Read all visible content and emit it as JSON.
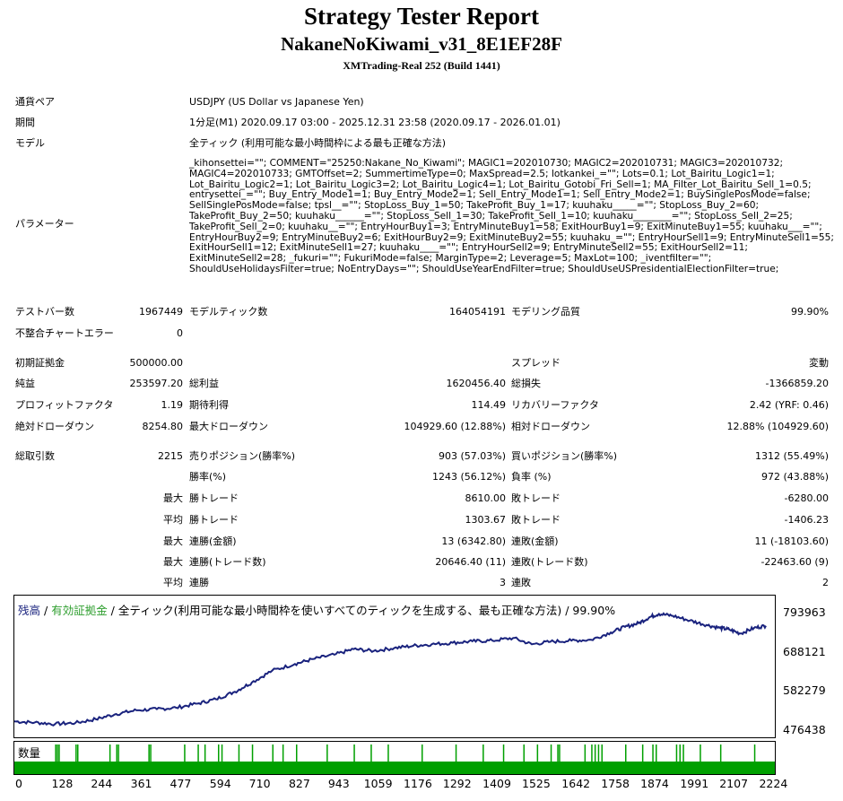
{
  "report": {
    "title": "Strategy Tester Report",
    "subtitle": "NakaneNoKiwami_v31_8E1EF28F",
    "server": "XMTrading-Real 252 (Build 1441)"
  },
  "settings": {
    "symbol_label": "通貨ペア",
    "symbol": "USDJPY (US Dollar vs Japanese Yen)",
    "period_label": "期間",
    "period": "1分足(M1) 2020.09.17 03:00 - 2025.12.31 23:58 (2020.09.17 - 2026.01.01)",
    "model_label": "モデル",
    "model": "全ティック (利用可能な最小時間枠による最も正確な方法)",
    "params_label": "パラメーター",
    "params": "_kihonsettei=\"\"; COMMENT=\"25250:Nakane_No_Kiwami\"; MAGIC1=202010730; MAGIC2=202010731; MAGIC3=202010732;\nMAGIC4=202010733; GMTOffset=2; SummertimeType=0; MaxSpread=2.5; lotkankei_=\"\"; Lots=0.1; Lot_Bairitu_Logic1=1;\nLot_Bairitu_Logic2=1; Lot_Bairitu_Logic3=2; Lot_Bairitu_Logic4=1; Lot_Bairitu_Gotobi_Fri_Sell=1; MA_Filter_Lot_Bairitu_Sell_1=0.5;\nentrysettei_=\"\"; Buy_Entry_Mode1=1; Buy_Entry_Mode2=1; Sell_Entry_Mode1=1; Sell_Entry_Mode2=1; BuySinglePosMode=false;\nSellSinglePosMode=false; tpsl__=\"\"; StopLoss_Buy_1=50; TakeProfit_Buy_1=17; kuuhaku_____=\"\"; StopLoss_Buy_2=60;\nTakeProfit_Buy_2=50; kuuhaku______=\"\"; StopLoss_Sell_1=30; TakeProfit_Sell_1=10; kuuhaku________=\"\"; StopLoss_Sell_2=25;\nTakeProfit_Sell_2=0; kuuhaku__=\"\"; EntryHourBuy1=3; EntryMinuteBuy1=58; ExitHourBuy1=9; ExitMinuteBuy1=55; kuuhaku___=\"\";\nEntryHourBuy2=9; EntryMinuteBuy2=6; ExitHourBuy2=9; ExitMinuteBuy2=55; kuuhaku_=\"\"; EntryHourSell1=9; EntryMinuteSell1=55;\nExitHourSell1=12; ExitMinuteSell1=27; kuuhaku____=\"\"; EntryHourSell2=9; EntryMinuteSell2=55; ExitHourSell2=11;\nExitMinuteSell2=28; _fukuri=\"\"; FukuriMode=false; MarginType=2; Leverage=5; MaxLot=100; _iventfilter=\"\";\nShouldUseHolidaysFilter=true; NoEntryDays=\"\"; ShouldUseYearEndFilter=true; ShouldUseUSPresidentialElectionFilter=true;"
  },
  "stats": {
    "bars_label": "テストバー数",
    "bars": "1967449",
    "ticks_label": "モデルティック数",
    "ticks": "164054191",
    "quality_label": "モデリング品質",
    "quality": "99.90%",
    "mismatch_label": "不整合チャートエラー",
    "mismatch": "0",
    "deposit_label": "初期証拠金",
    "deposit": "500000.00",
    "spread_label": "スプレッド",
    "spread": "変動",
    "net_label": "純益",
    "net": "253597.20",
    "gross_profit_label": "総利益",
    "gross_profit": "1620456.40",
    "gross_loss_label": "総損失",
    "gross_loss": "-1366859.20",
    "pf_label": "プロフィットファクタ",
    "pf": "1.19",
    "expected_label": "期待利得",
    "expected": "114.49",
    "recovery_label": "リカバリーファクタ",
    "recovery": "2.42 (YRF: 0.46)",
    "abs_dd_label": "絶対ドローダウン",
    "abs_dd": "8254.80",
    "max_dd_label": "最大ドローダウン",
    "max_dd": "104929.60 (12.88%)",
    "rel_dd_label": "相対ドローダウン",
    "rel_dd": "12.88% (104929.60)",
    "trades_label": "総取引数",
    "trades": "2215",
    "short_label": "売りポジション(勝率%)",
    "short": "903 (57.03%)",
    "long_label": "買いポジション(勝率%)",
    "long": "1312 (55.49%)",
    "winrate_label": "勝率(%)",
    "winrate": "1243 (56.12%)",
    "lossrate_label": "負率 (%)",
    "lossrate": "972 (43.88%)",
    "max_word": "最大",
    "avg_word": "平均",
    "largest_win_label": "勝トレード",
    "largest_win": "8610.00",
    "largest_loss_label": "敗トレード",
    "largest_loss": "-6280.00",
    "avg_win_label": "勝トレード",
    "avg_win": "1303.67",
    "avg_loss_label": "敗トレード",
    "avg_loss": "-1406.23",
    "max_consec_win_amt_label": "連勝(金額)",
    "max_consec_win_amt": "13 (6342.80)",
    "max_consec_loss_amt_label": "連敗(金額)",
    "max_consec_loss_amt": "11 (-18103.60)",
    "max_consec_win_cnt_label": "連勝(トレード数)",
    "max_consec_win_cnt": "20646.40 (11)",
    "max_consec_loss_cnt_label": "連敗(トレード数)",
    "max_consec_loss_cnt": "-22463.60 (9)",
    "avg_consec_win_label": "連勝",
    "avg_consec_win": "3",
    "avg_consec_loss_label": "連敗",
    "avg_consec_loss": "2"
  },
  "chart_legend": {
    "balance": "残高",
    "sep1": " / ",
    "equity": "有効証拠金",
    "sep2": " / ",
    "rest": "全ティック(利用可能な最小時間枠を使いすべてのティックを生成する、最も正確な方法) / 99.90%"
  },
  "volume_label": "数量",
  "colors": {
    "balance": "#1a237e",
    "equity": "#2e9e2e",
    "volume": "#00a000"
  },
  "chart_data": {
    "type": "line",
    "ylim": [
      476438,
      820000
    ],
    "yticks": [
      "793963",
      "688121",
      "582279",
      "476438"
    ],
    "xticks": [
      "0",
      "128",
      "244",
      "361",
      "477",
      "594",
      "710",
      "827",
      "943",
      "1059",
      "1176",
      "1292",
      "1409",
      "1525",
      "1642",
      "1758",
      "1874",
      "1991",
      "2107",
      "2224"
    ],
    "xlim": [
      0,
      2215
    ],
    "series": [
      {
        "x": [
          0,
          60,
          120,
          180,
          240,
          300,
          360,
          420,
          477,
          540,
          594,
          650,
          700,
          760,
          827,
          880,
          943,
          1000,
          1059,
          1120,
          1176,
          1230,
          1292,
          1350,
          1409,
          1470,
          1525,
          1580,
          1642,
          1700,
          1758,
          1800,
          1840,
          1874,
          1900,
          1940,
          1991,
          2040,
          2080,
          2107,
          2140,
          2180,
          2215
        ],
        "values": [
          500000,
          497000,
          493000,
          496000,
          506000,
          520000,
          530000,
          533000,
          537000,
          548000,
          560000,
          580000,
          605000,
          637000,
          655000,
          668000,
          680000,
          695000,
          690000,
          698000,
          704000,
          708000,
          712000,
          716000,
          718000,
          725000,
          708000,
          715000,
          718000,
          720000,
          740000,
          755000,
          765000,
          782000,
          790000,
          785000,
          772000,
          760000,
          752000,
          748000,
          737000,
          752000,
          758000
        ]
      }
    ],
    "volume_ticks_x": [
      120,
      125,
      130,
      180,
      185,
      280,
      300,
      305,
      395,
      400,
      500,
      540,
      560,
      600,
      610,
      660,
      700,
      760,
      790,
      830,
      920,
      1000,
      1050,
      1100,
      1200,
      1300,
      1380,
      1440,
      1500,
      1540,
      1580,
      1600,
      1605,
      1680,
      1700,
      1710,
      1720,
      1730,
      1800,
      1850,
      1880,
      1890,
      1950,
      1960,
      1970,
      2020,
      2080,
      2180
    ]
  }
}
